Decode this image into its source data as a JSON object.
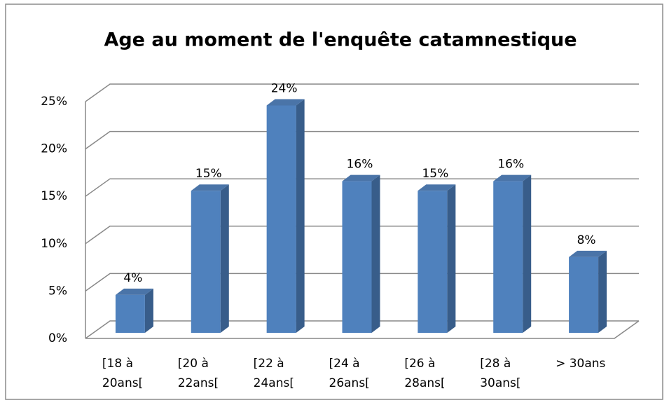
{
  "chart_data": {
    "type": "bar3d",
    "title": "Age au moment de l'enquête catamnestique",
    "categories": [
      "[18 à 20ans[",
      "[20 à 22ans[",
      "[22 à 24ans[",
      "[24 à 26ans[",
      "[26 à 28ans[",
      "[28 à 30ans[",
      "> 30ans"
    ],
    "values": [
      4,
      15,
      24,
      16,
      15,
      16,
      8
    ],
    "value_labels": [
      "4%",
      "15%",
      "24%",
      "16%",
      "15%",
      "16%",
      "8%"
    ],
    "color": "#4f81bd",
    "ylim": [
      0,
      25
    ],
    "yticks": [
      {
        "value": 0,
        "label": "0%"
      },
      {
        "value": 5,
        "label": "5%"
      },
      {
        "value": 10,
        "label": "10%"
      },
      {
        "value": 15,
        "label": "15%"
      },
      {
        "value": 20,
        "label": "20%"
      },
      {
        "value": 25,
        "label": "25%"
      }
    ],
    "grid": true
  }
}
